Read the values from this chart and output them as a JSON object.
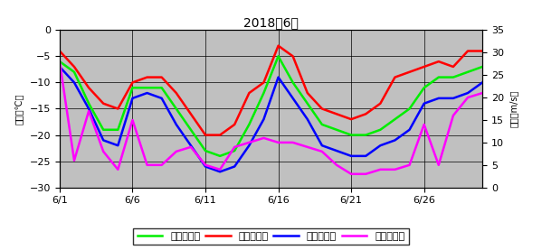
{
  "title": "2018年6月",
  "days": [
    1,
    2,
    3,
    4,
    5,
    6,
    7,
    8,
    9,
    10,
    11,
    12,
    13,
    14,
    15,
    16,
    17,
    18,
    19,
    20,
    21,
    22,
    23,
    24,
    25,
    26,
    27,
    28,
    29,
    30
  ],
  "avg_temp": [
    -6,
    -8,
    -14,
    -19,
    -19,
    -11,
    -11,
    -11,
    -15,
    -19,
    -23,
    -24,
    -23,
    -18,
    -12,
    -5,
    -10,
    -14,
    -18,
    -19,
    -20,
    -20,
    -19,
    -17,
    -15,
    -11,
    -9,
    -9,
    -8,
    -7
  ],
  "max_temp": [
    -4,
    -7,
    -11,
    -14,
    -15,
    -10,
    -9,
    -9,
    -12,
    -16,
    -20,
    -20,
    -18,
    -12,
    -10,
    -3,
    -5,
    -12,
    -15,
    -16,
    -17,
    -16,
    -14,
    -9,
    -8,
    -7,
    -6,
    -7,
    -4,
    -4
  ],
  "min_temp": [
    -7,
    -10,
    -15,
    -21,
    -22,
    -13,
    -12,
    -13,
    -18,
    -22,
    -26,
    -27,
    -26,
    -22,
    -17,
    -9,
    -13,
    -17,
    -22,
    -23,
    -24,
    -24,
    -22,
    -21,
    -19,
    -14,
    -13,
    -13,
    -12,
    -10
  ],
  "wind_speed": [
    28,
    6,
    17,
    8,
    4,
    15,
    5,
    5,
    8,
    9,
    5,
    4,
    9,
    10,
    11,
    10,
    10,
    9,
    8,
    5,
    3,
    3,
    4,
    4,
    5,
    14,
    5,
    16,
    20,
    21
  ],
  "temp_color": "#00ee00",
  "max_temp_color": "#ff0000",
  "min_temp_color": "#0000ff",
  "wind_color": "#ff00ff",
  "bg_color": "#c0c0c0",
  "ylim_temp": [
    -30,
    0
  ],
  "ylim_wind": [
    0,
    35
  ],
  "yticks_temp": [
    0,
    -5,
    -10,
    -15,
    -20,
    -25,
    -30
  ],
  "yticks_wind": [
    0,
    5,
    10,
    15,
    20,
    25,
    30,
    35
  ],
  "xticks": [
    1,
    6,
    11,
    16,
    21,
    26
  ],
  "ylabel_left": "気温（℃）",
  "ylabel_right": "風速（m/s）",
  "legend_avg": "日平均気温",
  "legend_max": "日最高気温",
  "legend_min": "日最低気温",
  "legend_wind": "日平均風速",
  "line_width": 1.8,
  "title_fontsize": 10,
  "tick_fontsize": 8,
  "label_fontsize": 7,
  "legend_fontsize": 8
}
